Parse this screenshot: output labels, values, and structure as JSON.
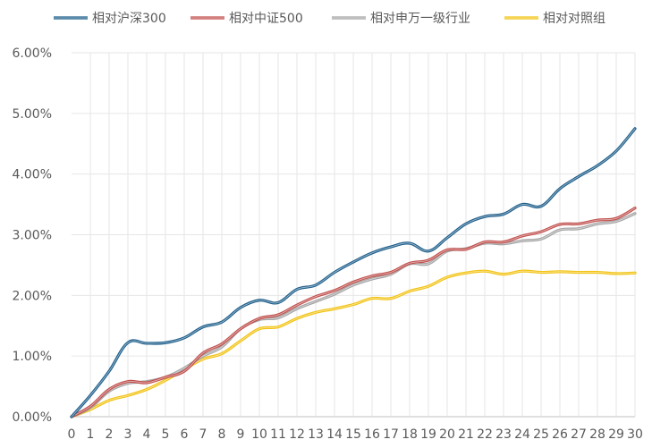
{
  "chart_data": {
    "type": "line",
    "x": [
      0,
      1,
      2,
      3,
      4,
      5,
      6,
      7,
      8,
      9,
      10,
      11,
      12,
      13,
      14,
      15,
      16,
      17,
      18,
      19,
      20,
      21,
      22,
      23,
      24,
      25,
      26,
      27,
      28,
      29,
      30
    ],
    "y_ticks": [
      "0.00%",
      "1.00%",
      "2.00%",
      "3.00%",
      "4.00%",
      "5.00%",
      "6.00%"
    ],
    "ylim": [
      0,
      6
    ],
    "grid": true,
    "legend_position": "top",
    "series": [
      {
        "name": "相对沪深300",
        "color": "#1f5f8b",
        "values": [
          0.0,
          0.35,
          0.75,
          1.22,
          1.21,
          1.22,
          1.3,
          1.48,
          1.56,
          1.8,
          1.92,
          1.88,
          2.1,
          2.17,
          2.38,
          2.55,
          2.7,
          2.8,
          2.86,
          2.73,
          2.95,
          3.18,
          3.3,
          3.34,
          3.5,
          3.47,
          3.76,
          3.96,
          4.14,
          4.38,
          4.75
        ]
      },
      {
        "name": "相对中证500",
        "color": "#c0504d",
        "values": [
          0.0,
          0.17,
          0.45,
          0.58,
          0.56,
          0.65,
          0.75,
          1.05,
          1.2,
          1.45,
          1.62,
          1.68,
          1.84,
          1.98,
          2.08,
          2.22,
          2.32,
          2.38,
          2.53,
          2.58,
          2.75,
          2.76,
          2.88,
          2.88,
          2.98,
          3.05,
          3.17,
          3.18,
          3.24,
          3.27,
          3.44
        ]
      },
      {
        "name": "相对申万一级行业",
        "color": "#a5a5a5",
        "values": [
          0.0,
          0.15,
          0.42,
          0.55,
          0.58,
          0.65,
          0.8,
          1.0,
          1.15,
          1.45,
          1.6,
          1.63,
          1.78,
          1.9,
          2.02,
          2.17,
          2.27,
          2.35,
          2.52,
          2.52,
          2.73,
          2.77,
          2.86,
          2.85,
          2.9,
          2.93,
          3.08,
          3.1,
          3.18,
          3.22,
          3.35
        ]
      },
      {
        "name": "相对对照组",
        "color": "#f2c314",
        "values": [
          0.0,
          0.12,
          0.27,
          0.35,
          0.45,
          0.6,
          0.78,
          0.95,
          1.04,
          1.25,
          1.45,
          1.48,
          1.62,
          1.72,
          1.78,
          1.85,
          1.95,
          1.95,
          2.07,
          2.15,
          2.3,
          2.37,
          2.4,
          2.35,
          2.4,
          2.38,
          2.39,
          2.38,
          2.38,
          2.36,
          2.37
        ]
      }
    ]
  }
}
